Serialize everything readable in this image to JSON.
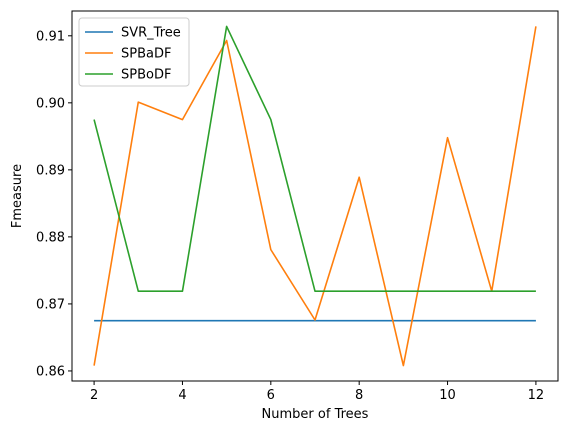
{
  "chart_data": {
    "type": "line",
    "title": "",
    "xlabel": "Number of Trees",
    "ylabel": "Fmeasure",
    "xlim": [
      1.5,
      12.5
    ],
    "ylim": [
      0.8585,
      0.9137
    ],
    "xticks": [
      2,
      4,
      6,
      8,
      10,
      12
    ],
    "xtick_labels": [
      "2",
      "4",
      "6",
      "8",
      "10",
      "12"
    ],
    "yticks": [
      0.86,
      0.87,
      0.88,
      0.89,
      0.9,
      0.91
    ],
    "ytick_labels": [
      "0.86",
      "0.87",
      "0.88",
      "0.89",
      "0.90",
      "0.91"
    ],
    "grid": false,
    "legend_position": "top-left",
    "x": [
      2,
      3,
      4,
      5,
      6,
      7,
      8,
      9,
      10,
      11,
      12
    ],
    "series": [
      {
        "name": "SVR_Tree",
        "color": "#1f77b4",
        "values": [
          0.8675,
          0.8675,
          0.8675,
          0.8675,
          0.8675,
          0.8675,
          0.8675,
          0.8675,
          0.8675,
          0.8675,
          0.8675
        ]
      },
      {
        "name": "SPBaDF",
        "color": "#ff7f0e",
        "values": [
          0.8608,
          0.9001,
          0.8975,
          0.9093,
          0.8781,
          0.8676,
          0.8889,
          0.8608,
          0.8948,
          0.8719,
          0.9114
        ]
      },
      {
        "name": "SPBoDF",
        "color": "#2ca02c",
        "values": [
          0.8975,
          0.8719,
          0.8719,
          0.9114,
          0.8975,
          0.8719,
          0.8719,
          0.8719,
          0.8719,
          0.8719,
          0.8719
        ]
      }
    ]
  }
}
